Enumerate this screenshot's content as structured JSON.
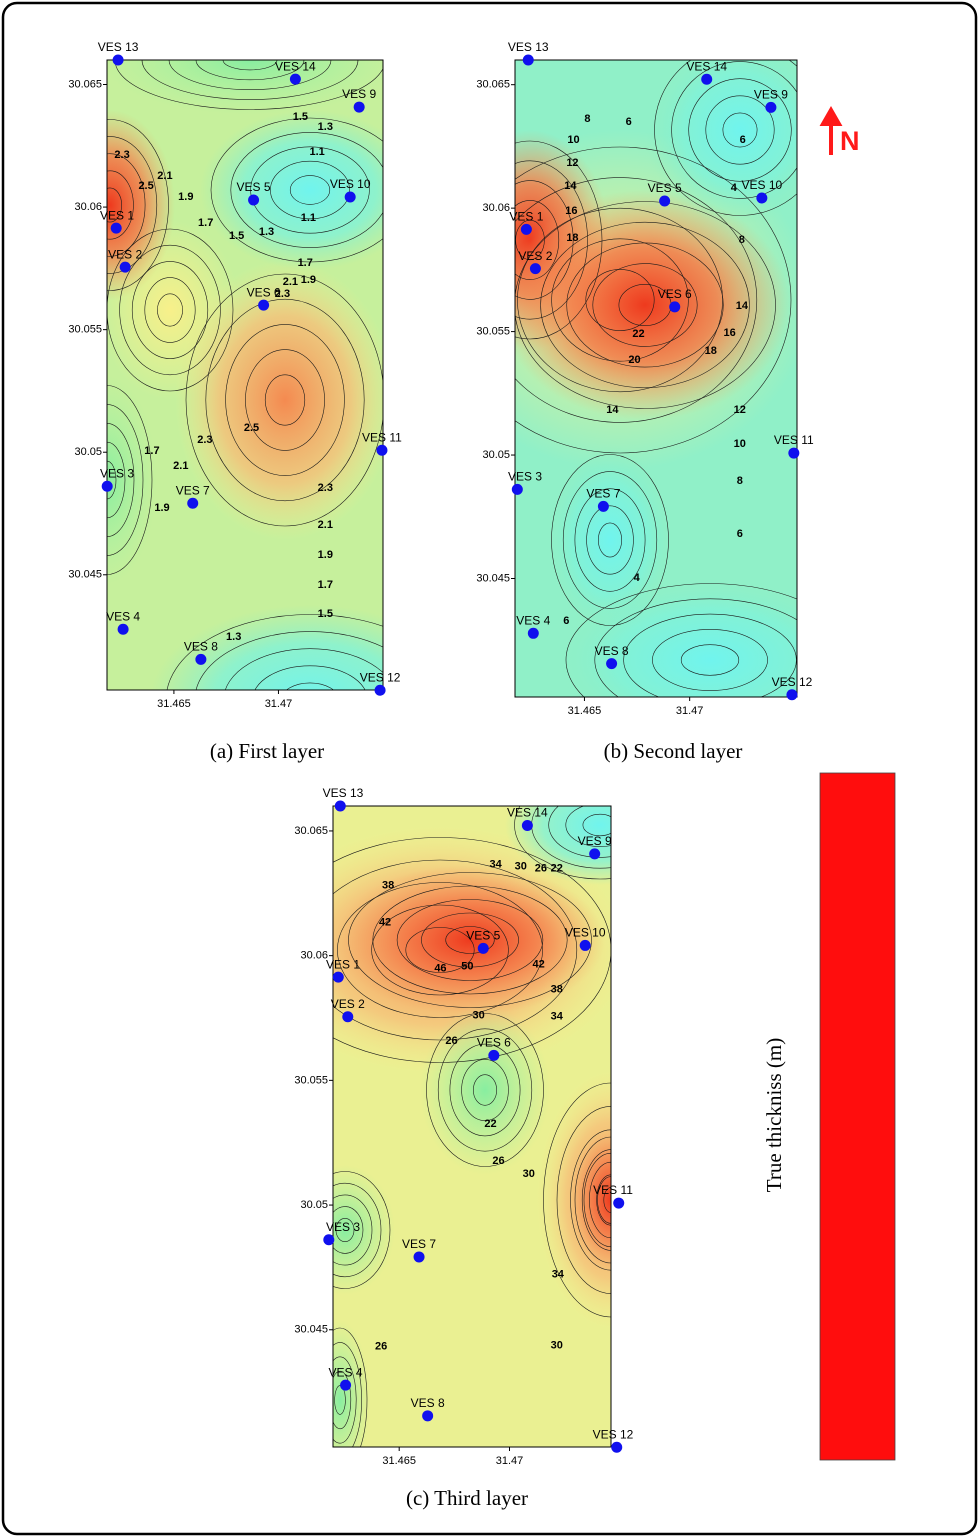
{
  "north_label": "N",
  "colorbar_label": "True thickniss (m)",
  "chart_data": [
    {
      "type": "contour",
      "caption": "(a) First layer",
      "xlim": [
        31.4618,
        31.475
      ],
      "ylim": [
        30.0403,
        30.066
      ],
      "xticks": [
        31.465,
        31.47
      ],
      "yticks": [
        30.045,
        30.05,
        30.055,
        30.06,
        30.065
      ],
      "points": {
        "labels": [
          "VES 13",
          "VES 14",
          "VES 9",
          "VES 5",
          "VES 10",
          "VES 1",
          "VES 2",
          "VES 6",
          "VES 11",
          "VES 3",
          "VES 7",
          "VES 4",
          "VES 8",
          "VES 12"
        ],
        "x": [
          31.46233,
          31.47081,
          31.47386,
          31.46881,
          31.47343,
          31.46224,
          31.46267,
          31.46929,
          31.47495,
          31.46181,
          31.4659,
          31.46257,
          31.46629,
          31.47486
        ],
        "y": [
          30.066,
          30.06522,
          30.06408,
          30.06029,
          30.06041,
          30.05914,
          30.05755,
          30.056,
          30.05008,
          30.04861,
          30.04792,
          30.04278,
          30.04155,
          30.04029
        ]
      },
      "contour_labels": {
        "values": [
          2.3,
          2.5,
          2.1,
          1.9,
          1.7,
          1.5,
          1.3,
          1.1,
          1.1,
          1.3,
          1.5,
          1.7,
          1.9,
          2.1,
          2.3,
          2.5,
          2.3,
          1.7,
          2.1,
          1.9,
          2.3,
          2.1,
          1.9,
          1.7,
          1.5,
          1.3
        ],
        "x": [
          31.46252,
          31.46367,
          31.46457,
          31.46557,
          31.46652,
          31.468,
          31.46943,
          31.47143,
          31.47185,
          31.47224,
          31.47105,
          31.47128,
          31.47143,
          31.47057,
          31.47019,
          31.46871,
          31.46648,
          31.46395,
          31.46533,
          31.46443,
          31.47224,
          31.47224,
          31.47224,
          31.47224,
          31.47224,
          31.46786
        ],
        "y": [
          30.06212,
          30.06086,
          30.06126,
          30.06041,
          30.05935,
          30.05882,
          30.05898,
          30.05955,
          30.06224,
          30.06326,
          30.06367,
          30.05772,
          30.05702,
          30.05694,
          30.05645,
          30.05098,
          30.05049,
          30.05004,
          30.04943,
          30.04772,
          30.04853,
          30.04703,
          30.0458,
          30.04458,
          30.04339,
          30.04246
        ]
      }
    },
    {
      "type": "contour",
      "caption": "(b) Second layer",
      "xlim": [
        31.4617,
        31.4751
      ],
      "ylim": [
        30.0402,
        30.066
      ],
      "xticks": [
        31.465,
        31.47
      ],
      "yticks": [
        30.045,
        30.05,
        30.055,
        30.06,
        30.065
      ],
      "points": {
        "labels": [
          "VES 13",
          "VES 14",
          "VES 9",
          "VES 5",
          "VES 10",
          "VES 1",
          "VES 2",
          "VES 6",
          "VES 11",
          "VES 3",
          "VES 7",
          "VES 4",
          "VES 8",
          "VES 12"
        ],
        "x": [
          31.46233,
          31.47081,
          31.47386,
          31.46881,
          31.47343,
          31.46224,
          31.46267,
          31.46929,
          31.47495,
          31.46181,
          31.4659,
          31.46257,
          31.46629,
          31.47486
        ],
        "y": [
          30.066,
          30.06522,
          30.06408,
          30.06029,
          30.06041,
          30.05914,
          30.05755,
          30.056,
          30.05008,
          30.04861,
          30.04792,
          30.04278,
          30.04155,
          30.04029
        ]
      },
      "contour_labels": {
        "values": [
          8,
          6,
          10,
          12,
          14,
          16,
          18,
          6,
          4,
          8,
          14,
          16,
          18,
          22,
          20,
          14,
          12,
          10,
          8,
          6,
          4,
          6
        ],
        "x": [
          31.46514,
          31.4671,
          31.46448,
          31.46443,
          31.46433,
          31.46438,
          31.46443,
          31.47252,
          31.4721,
          31.47248,
          31.47248,
          31.4719,
          31.471,
          31.46757,
          31.46738,
          31.46633,
          31.47238,
          31.47238,
          31.47238,
          31.47238,
          31.46748,
          31.46414
        ],
        "y": [
          30.0636,
          30.06348,
          30.06275,
          30.06182,
          30.06089,
          30.05988,
          30.05878,
          30.06275,
          30.06081,
          30.0587,
          30.05603,
          30.05494,
          30.05421,
          30.0549,
          30.05384,
          30.05182,
          30.05182,
          30.05044,
          30.04894,
          30.0468,
          30.04501,
          30.04327
        ]
      }
    },
    {
      "type": "contour",
      "caption": "(c) Third layer",
      "xlim": [
        31.462,
        31.4746
      ],
      "ylim": [
        30.0403,
        30.066
      ],
      "xticks": [
        31.465,
        31.47
      ],
      "yticks": [
        30.045,
        30.05,
        30.055,
        30.06,
        30.065
      ],
      "points": {
        "labels": [
          "VES 13",
          "VES 14",
          "VES 9",
          "VES 5",
          "VES 10",
          "VES 1",
          "VES 2",
          "VES 6",
          "VES 11",
          "VES 3",
          "VES 7",
          "VES 4",
          "VES 8",
          "VES 12"
        ],
        "x": [
          31.46233,
          31.47081,
          31.47386,
          31.46881,
          31.47343,
          31.46224,
          31.46267,
          31.46929,
          31.47495,
          31.46181,
          31.4659,
          31.46257,
          31.46629,
          31.47486
        ],
        "y": [
          30.066,
          30.06522,
          30.06408,
          30.06029,
          30.06041,
          30.05914,
          30.05755,
          30.056,
          30.05008,
          30.04861,
          30.04792,
          30.04278,
          30.04155,
          30.04029
        ]
      },
      "contour_labels": {
        "values": [
          38,
          42,
          46,
          50,
          34,
          30,
          26,
          22,
          42,
          38,
          34,
          30,
          26,
          22,
          26,
          30,
          34,
          30,
          26
        ],
        "x": [
          31.4645,
          31.46436,
          31.46687,
          31.46809,
          31.46937,
          31.47051,
          31.47142,
          31.47214,
          31.47132,
          31.47214,
          31.47214,
          31.4686,
          31.46737,
          31.46914,
          31.4695,
          31.47087,
          31.47219,
          31.47214,
          31.46418
        ],
        "y": [
          30.06281,
          30.06133,
          30.05948,
          30.05956,
          30.06366,
          30.06358,
          30.0635,
          30.0635,
          30.05964,
          30.05863,
          30.05755,
          30.05759,
          30.05658,
          30.05325,
          30.05176,
          30.05124,
          30.04722,
          30.04436,
          30.04432
        ]
      }
    }
  ]
}
